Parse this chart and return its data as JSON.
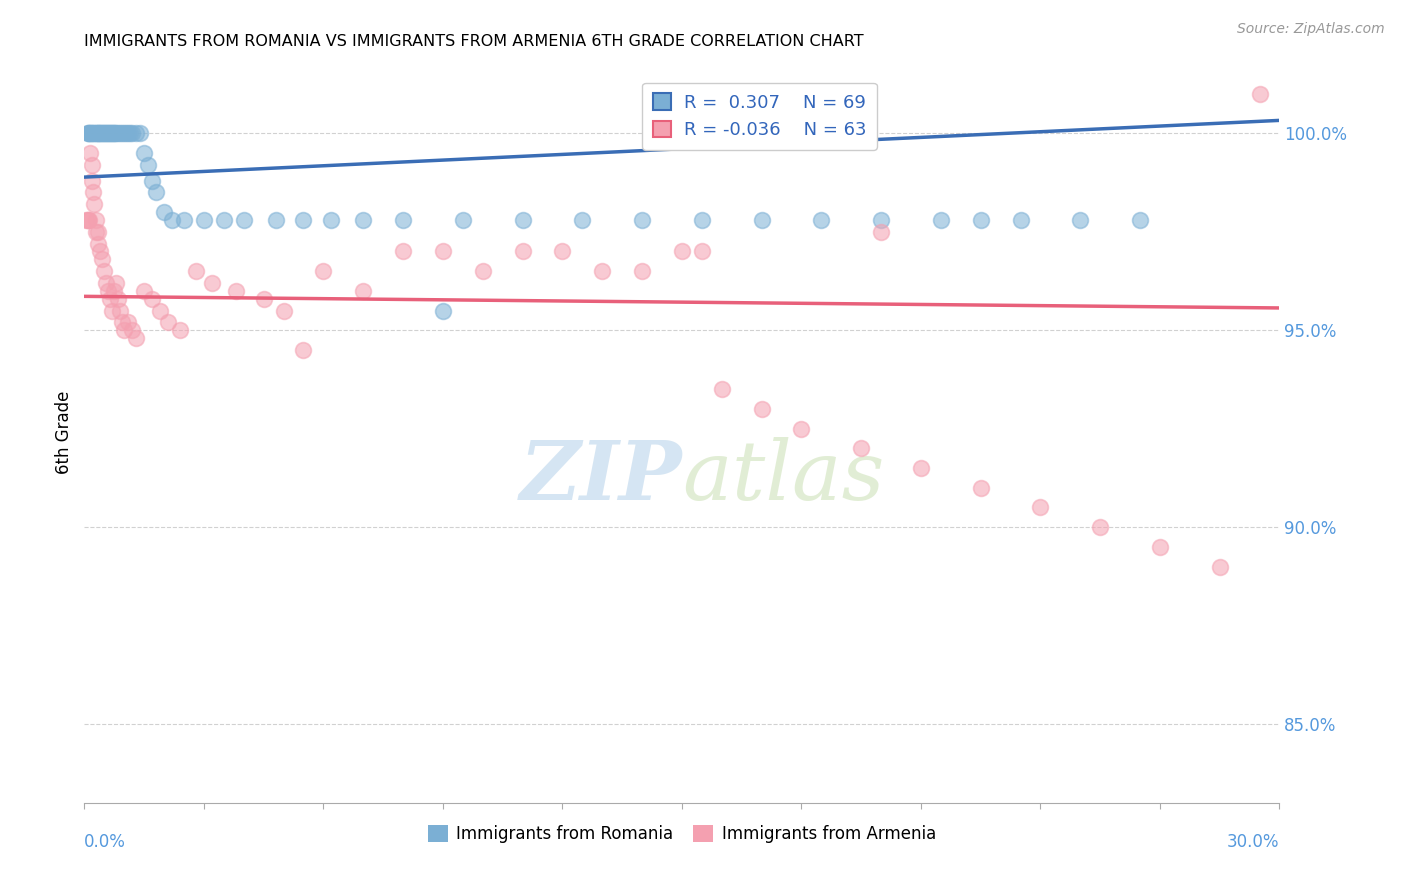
{
  "title": "IMMIGRANTS FROM ROMANIA VS IMMIGRANTS FROM ARMENIA 6TH GRADE CORRELATION CHART",
  "source": "Source: ZipAtlas.com",
  "ylabel": "6th Grade",
  "xlim": [
    0.0,
    30.0
  ],
  "ylim": [
    83.0,
    101.8
  ],
  "yticks": [
    85.0,
    90.0,
    95.0,
    100.0
  ],
  "romania_R": 0.307,
  "romania_N": 69,
  "armenia_R": -0.036,
  "armenia_N": 63,
  "romania_color": "#7BAFD4",
  "armenia_color": "#F4A0B0",
  "romania_line_color": "#3A6DB5",
  "armenia_line_color": "#E8607A",
  "watermark_zip": "ZIP",
  "watermark_atlas": "atlas",
  "background_color": "#FFFFFF",
  "grid_color": "#CCCCCC",
  "romania_x": [
    0.08,
    0.1,
    0.12,
    0.15,
    0.17,
    0.2,
    0.22,
    0.25,
    0.28,
    0.3,
    0.33,
    0.35,
    0.38,
    0.4,
    0.43,
    0.45,
    0.48,
    0.5,
    0.53,
    0.55,
    0.58,
    0.6,
    0.63,
    0.65,
    0.68,
    0.7,
    0.73,
    0.75,
    0.78,
    0.8,
    0.85,
    0.9,
    0.95,
    1.0,
    1.05,
    1.1,
    1.15,
    1.2,
    1.3,
    1.4,
    1.5,
    1.6,
    1.7,
    1.8,
    2.0,
    2.2,
    2.5,
    3.0,
    3.5,
    4.0,
    4.8,
    5.5,
    6.2,
    7.0,
    8.0,
    9.5,
    11.0,
    12.5,
    14.0,
    15.5,
    17.0,
    18.5,
    20.0,
    21.5,
    22.5,
    23.5,
    25.0,
    26.5,
    9.0
  ],
  "romania_y": [
    100.0,
    100.0,
    100.0,
    100.0,
    100.0,
    100.0,
    100.0,
    100.0,
    100.0,
    100.0,
    100.0,
    100.0,
    100.0,
    100.0,
    100.0,
    100.0,
    100.0,
    100.0,
    100.0,
    100.0,
    100.0,
    100.0,
    100.0,
    100.0,
    100.0,
    100.0,
    100.0,
    100.0,
    100.0,
    100.0,
    100.0,
    100.0,
    100.0,
    100.0,
    100.0,
    100.0,
    100.0,
    100.0,
    100.0,
    100.0,
    99.5,
    99.2,
    98.8,
    98.5,
    98.0,
    97.8,
    97.8,
    97.8,
    97.8,
    97.8,
    97.8,
    97.8,
    97.8,
    97.8,
    97.8,
    97.8,
    97.8,
    97.8,
    97.8,
    97.8,
    97.8,
    97.8,
    97.8,
    97.8,
    97.8,
    97.8,
    97.8,
    97.8,
    95.5
  ],
  "armenia_x": [
    0.05,
    0.08,
    0.1,
    0.12,
    0.15,
    0.18,
    0.2,
    0.22,
    0.25,
    0.28,
    0.3,
    0.33,
    0.35,
    0.4,
    0.45,
    0.5,
    0.55,
    0.6,
    0.65,
    0.7,
    0.75,
    0.8,
    0.85,
    0.9,
    0.95,
    1.0,
    1.1,
    1.2,
    1.3,
    1.5,
    1.7,
    1.9,
    2.1,
    2.4,
    2.8,
    3.2,
    3.8,
    4.5,
    5.0,
    5.5,
    6.0,
    7.0,
    8.0,
    9.0,
    10.0,
    11.0,
    12.0,
    13.0,
    14.0,
    15.0,
    16.0,
    17.0,
    18.0,
    19.5,
    21.0,
    22.5,
    24.0,
    25.5,
    27.0,
    28.5,
    29.5,
    20.0,
    15.5
  ],
  "armenia_y": [
    97.8,
    97.8,
    97.8,
    97.8,
    99.5,
    99.2,
    98.8,
    98.5,
    98.2,
    97.8,
    97.5,
    97.5,
    97.2,
    97.0,
    96.8,
    96.5,
    96.2,
    96.0,
    95.8,
    95.5,
    96.0,
    96.2,
    95.8,
    95.5,
    95.2,
    95.0,
    95.2,
    95.0,
    94.8,
    96.0,
    95.8,
    95.5,
    95.2,
    95.0,
    96.5,
    96.2,
    96.0,
    95.8,
    95.5,
    94.5,
    96.5,
    96.0,
    97.0,
    97.0,
    96.5,
    97.0,
    97.0,
    96.5,
    96.5,
    97.0,
    93.5,
    93.0,
    92.5,
    92.0,
    91.5,
    91.0,
    90.5,
    90.0,
    89.5,
    89.0,
    101.0,
    97.5,
    97.0
  ]
}
